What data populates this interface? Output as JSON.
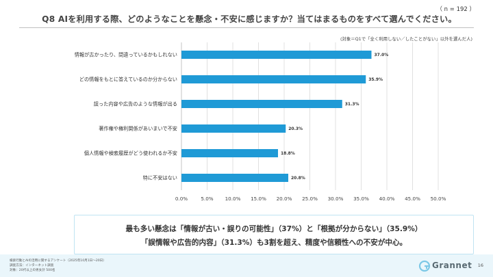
{
  "header": {
    "title": "Q8 AIを利用する際、どのようなことを懸念・不安に感じますか？当てはまるものをすべて選んでください。",
    "sample_size": "（ n = 192 ）",
    "base_note": "(対象＝Q1で「全く利用しない／したことがない」以外を選んだ人)"
  },
  "chart_data": {
    "type": "bar",
    "orientation": "horizontal",
    "categories": [
      "情報が古かったり、間違っているかもしれない",
      "どの情報をもとに答えているのか分からない",
      "誤った内容や広告のような情報が出る",
      "著作権や権利関係があいまいで不安",
      "個人情報や検索履歴がどう使われるか不安",
      "特に不安はない"
    ],
    "values": [
      37.0,
      35.9,
      31.3,
      20.3,
      18.8,
      20.8
    ],
    "value_labels": [
      "37.0%",
      "35.9%",
      "31.3%",
      "20.3%",
      "18.8%",
      "20.8%"
    ],
    "xlim": [
      0,
      50
    ],
    "ticks": [
      "0.0%",
      "5.0%",
      "10.0%",
      "15.0%",
      "20.0%",
      "25.0%",
      "30.0%",
      "35.0%",
      "40.0%",
      "45.0%",
      "50.0%"
    ],
    "tick_values": [
      0,
      5,
      10,
      15,
      20,
      25,
      30,
      35,
      40,
      45,
      50
    ],
    "bar_color": "#1f9ad6",
    "grid": true
  },
  "callout": {
    "line1": "最も多い懸念は「情報が古い・誤りの可能性」（37%）と「根拠が分からない」（35.9%）",
    "line2": "「誤情報や広告的内容」（31.3%）も3割を超え、精度や信頼性への不安が中心。"
  },
  "footer": {
    "note1": "検索行動とAIの活用に関するアンケート（2025年10月1日〜20日）",
    "note2": "調査方法：インターネット調査",
    "note3": "対象：20代以上の男女計 500名",
    "logo_text": "Grannet",
    "page_number": "16"
  },
  "colors": {
    "accent": "#1f9ad6",
    "callout_border": "#bfe3f2",
    "footer_band": "#eaf6fb"
  }
}
